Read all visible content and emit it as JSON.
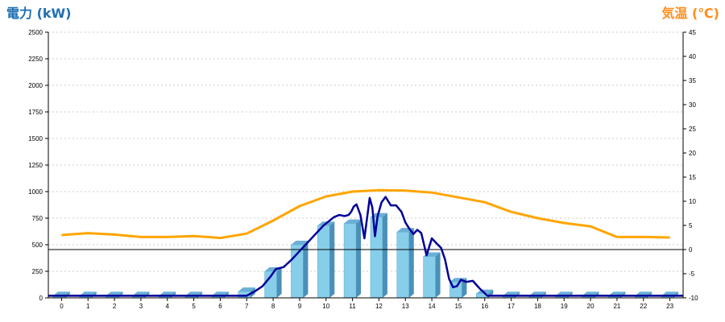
{
  "chart_data": {
    "type": "bar+line",
    "left_title": "電力 (kW)",
    "right_title": "気温 (℃)",
    "left_axis": {
      "min": 0,
      "max": 2500,
      "ticks": [
        0,
        250,
        500,
        750,
        1000,
        1250,
        1500,
        1750,
        2000,
        2250,
        2500
      ]
    },
    "right_axis": {
      "min": -10,
      "max": 45,
      "ticks": [
        -10,
        -5,
        0,
        5,
        10,
        15,
        20,
        25,
        30,
        35,
        40,
        45
      ]
    },
    "categories": [
      "0",
      "1",
      "2",
      "3",
      "4",
      "5",
      "6",
      "7",
      "8",
      "9",
      "10",
      "11",
      "12",
      "13",
      "14",
      "15",
      "16",
      "17",
      "18",
      "19",
      "20",
      "21",
      "22",
      "23"
    ],
    "grid": true,
    "series": [
      {
        "type": "bar",
        "axis": "left",
        "values": [
          20,
          20,
          20,
          20,
          20,
          20,
          20,
          60,
          250,
          500,
          680,
          700,
          760,
          620,
          390,
          150,
          40,
          20,
          20,
          20,
          20,
          20,
          20,
          20
        ]
      },
      {
        "type": "line",
        "axis": "left",
        "x": [
          7,
          7.3,
          7.6,
          7.9,
          8.1,
          8.4,
          8.7,
          9,
          9.3,
          9.6,
          9.9,
          10.1,
          10.3,
          10.5,
          10.7,
          10.85,
          10.95,
          11.05,
          11.15,
          11.3,
          11.45,
          11.55,
          11.65,
          11.75,
          11.85,
          11.95,
          12.1,
          12.25,
          12.45,
          12.65,
          12.85,
          13,
          13.15,
          13.3,
          13.45,
          13.6,
          13.8,
          14,
          14.15,
          14.35,
          14.5,
          14.65,
          14.8,
          14.95,
          15.1,
          15.3,
          15.55,
          15.8,
          16.1,
          23.5
        ],
        "values": [
          20,
          60,
          110,
          200,
          270,
          290,
          360,
          440,
          520,
          600,
          680,
          720,
          760,
          780,
          770,
          780,
          810,
          860,
          880,
          780,
          560,
          750,
          940,
          850,
          580,
          770,
          900,
          950,
          870,
          870,
          810,
          710,
          650,
          600,
          640,
          610,
          400,
          560,
          520,
          470,
          360,
          180,
          100,
          110,
          170,
          150,
          160,
          90,
          20,
          20
        ]
      },
      {
        "type": "line",
        "axis": "right",
        "x": [
          0,
          1,
          2,
          3,
          4,
          5,
          6,
          7,
          8,
          9,
          10,
          11,
          12,
          13,
          14,
          15,
          16,
          17,
          18,
          19,
          20,
          21,
          22,
          23
        ],
        "values": [
          3,
          3.4,
          3.1,
          2.6,
          2.6,
          2.8,
          2.4,
          3.3,
          6,
          9,
          11,
          12,
          12.3,
          12.2,
          11.8,
          10.8,
          9.8,
          7.8,
          6.5,
          5.5,
          4.8,
          2.6,
          2.6,
          2.5
        ]
      }
    ],
    "colors": {
      "bar": "#87ceeb",
      "line_power": "#000099",
      "line_temp": "#ffa500",
      "title_left": "#1f6fb3",
      "title_right": "#ff8c1a"
    }
  }
}
